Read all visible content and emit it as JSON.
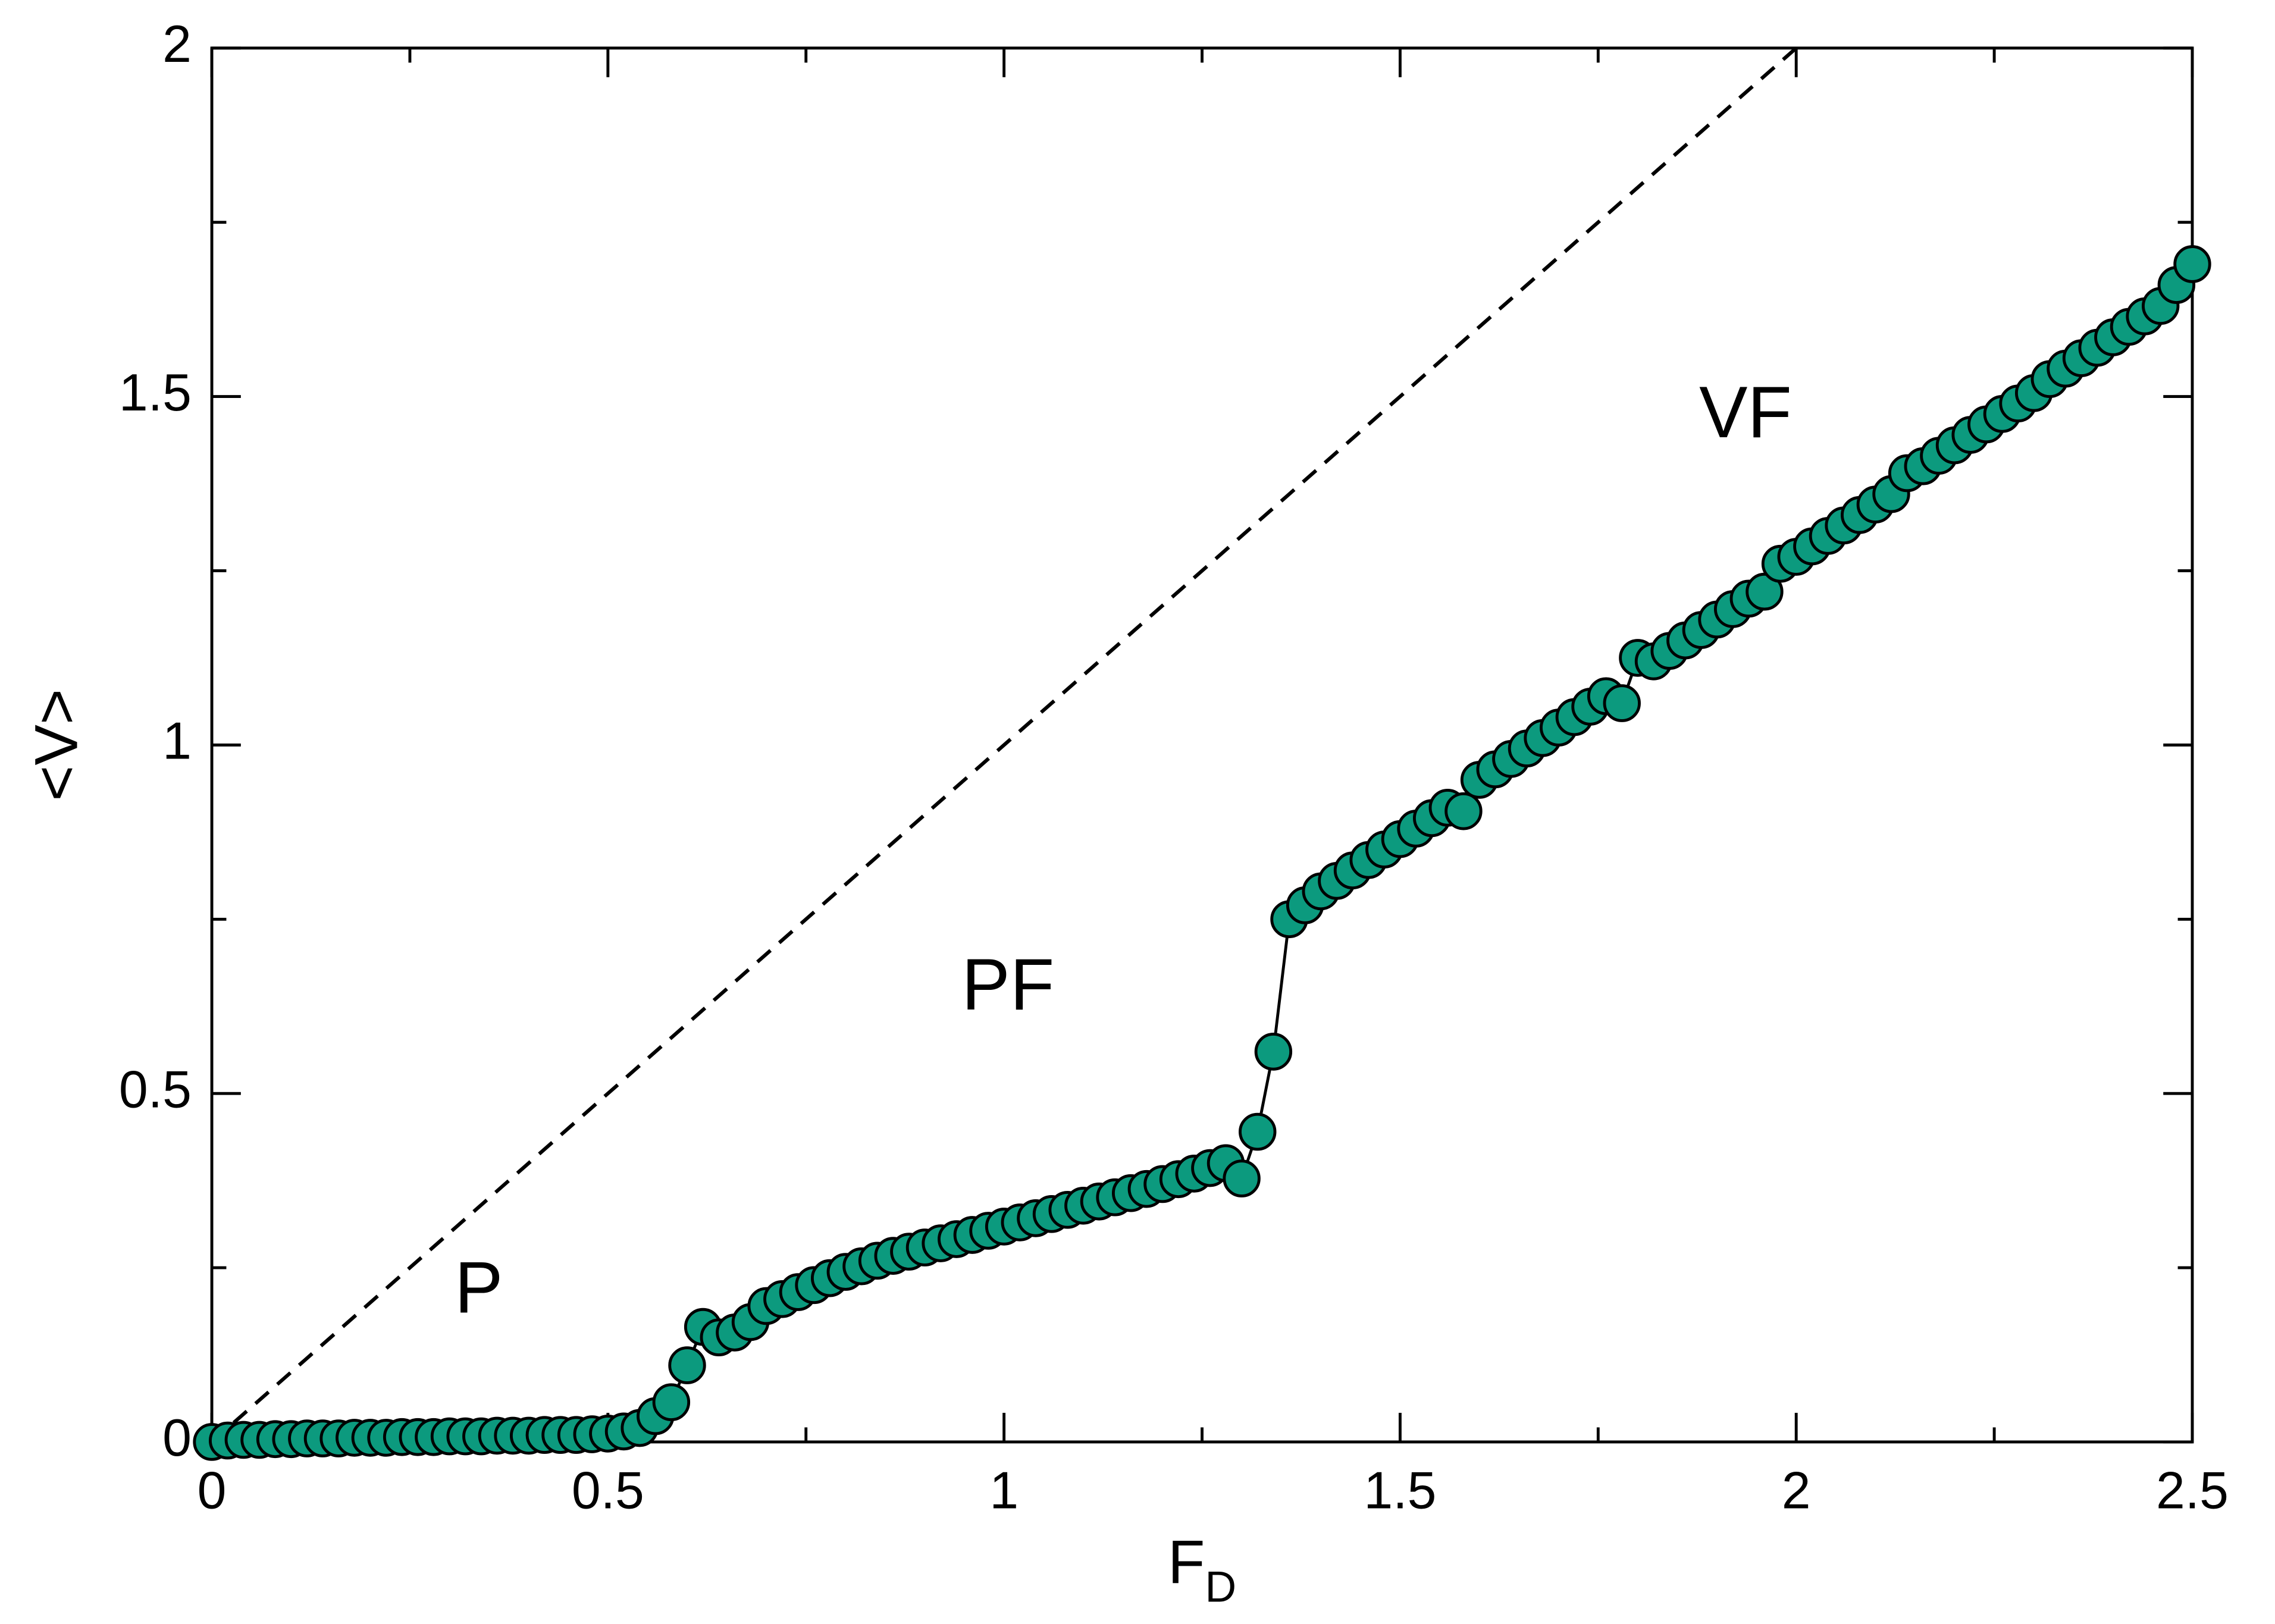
{
  "chart_data": {
    "type": "line",
    "xlabel": "F",
    "xlabel_subscript": "D",
    "ylabel": "<V>",
    "xlim": [
      0,
      2.5
    ],
    "ylim": [
      0,
      2
    ],
    "xticks": [
      0,
      0.5,
      1,
      1.5,
      2,
      2.5
    ],
    "yticks": [
      0,
      0.5,
      1,
      1.5,
      2
    ],
    "xminor_ticks": [
      0.25,
      0.75,
      1.25,
      1.75,
      2.25
    ],
    "yminor_ticks": [
      0.25,
      0.75,
      1.25,
      1.75
    ],
    "marker_color": "#0c9a7e",
    "line_color": "#000000",
    "x": [
      0,
      0.02,
      0.04,
      0.06,
      0.08,
      0.1,
      0.12,
      0.14,
      0.16,
      0.18,
      0.2,
      0.22,
      0.24,
      0.26,
      0.28,
      0.3,
      0.32,
      0.34,
      0.36,
      0.38,
      0.4,
      0.42,
      0.44,
      0.46,
      0.48,
      0.5,
      0.52,
      0.54,
      0.56,
      0.58,
      0.6,
      0.62,
      0.64,
      0.66,
      0.68,
      0.7,
      0.72,
      0.74,
      0.76,
      0.78,
      0.8,
      0.82,
      0.84,
      0.86,
      0.88,
      0.9,
      0.92,
      0.94,
      0.96,
      0.98,
      1,
      1.02,
      1.04,
      1.06,
      1.08,
      1.1,
      1.12,
      1.14,
      1.16,
      1.18,
      1.2,
      1.22,
      1.24,
      1.26,
      1.28,
      1.3,
      1.32,
      1.34,
      1.36,
      1.38,
      1.4,
      1.42,
      1.44,
      1.46,
      1.48,
      1.5,
      1.52,
      1.54,
      1.56,
      1.58,
      1.6,
      1.62,
      1.64,
      1.66,
      1.68,
      1.7,
      1.72,
      1.74,
      1.76,
      1.78,
      1.8,
      1.82,
      1.84,
      1.86,
      1.88,
      1.9,
      1.92,
      1.94,
      1.96,
      1.98,
      2,
      2.02,
      2.04,
      2.06,
      2.08,
      2.1,
      2.12,
      2.14,
      2.16,
      2.18,
      2.2,
      2.22,
      2.24,
      2.26,
      2.28,
      2.3,
      2.32,
      2.34,
      2.36,
      2.38,
      2.4,
      2.42,
      2.44,
      2.46,
      2.48,
      2.5
    ],
    "series": [
      {
        "values": [
          0,
          0.002,
          0.003,
          0.003,
          0.004,
          0.004,
          0.005,
          0.005,
          0.005,
          0.006,
          0.006,
          0.006,
          0.007,
          0.007,
          0.007,
          0.008,
          0.008,
          0.008,
          0.009,
          0.009,
          0.009,
          0.01,
          0.01,
          0.01,
          0.011,
          0.012,
          0.015,
          0.02,
          0.037,
          0.057,
          0.11,
          0.165,
          0.15,
          0.157,
          0.172,
          0.195,
          0.205,
          0.215,
          0.225,
          0.235,
          0.244,
          0.252,
          0.26,
          0.267,
          0.273,
          0.279,
          0.285,
          0.291,
          0.297,
          0.303,
          0.309,
          0.315,
          0.321,
          0.327,
          0.333,
          0.339,
          0.345,
          0.351,
          0.357,
          0.363,
          0.37,
          0.377,
          0.385,
          0.393,
          0.4,
          0.378,
          0.445,
          0.56,
          0.75,
          0.77,
          0.79,
          0.805,
          0.82,
          0.835,
          0.85,
          0.865,
          0.88,
          0.895,
          0.91,
          0.905,
          0.95,
          0.965,
          0.98,
          0.995,
          1.01,
          1.025,
          1.04,
          1.055,
          1.07,
          1.06,
          1.125,
          1.12,
          1.135,
          1.15,
          1.165,
          1.18,
          1.195,
          1.21,
          1.22,
          1.26,
          1.27,
          1.285,
          1.3,
          1.315,
          1.33,
          1.345,
          1.36,
          1.39,
          1.4,
          1.415,
          1.43,
          1.445,
          1.46,
          1.475,
          1.49,
          1.505,
          1.525,
          1.54,
          1.555,
          1.57,
          1.585,
          1.6,
          1.615,
          1.63,
          1.66,
          1.69
        ]
      }
    ],
    "reference_line": {
      "x": [
        0,
        2
      ],
      "y": [
        0,
        2
      ],
      "style": "dashed"
    },
    "annotations": [
      {
        "text": "P",
        "x": 0.337,
        "y": 0.213
      },
      {
        "text": "PF",
        "x": 1.005,
        "y": 0.648
      },
      {
        "text": "VF",
        "x": 1.936,
        "y": 1.469
      }
    ]
  }
}
